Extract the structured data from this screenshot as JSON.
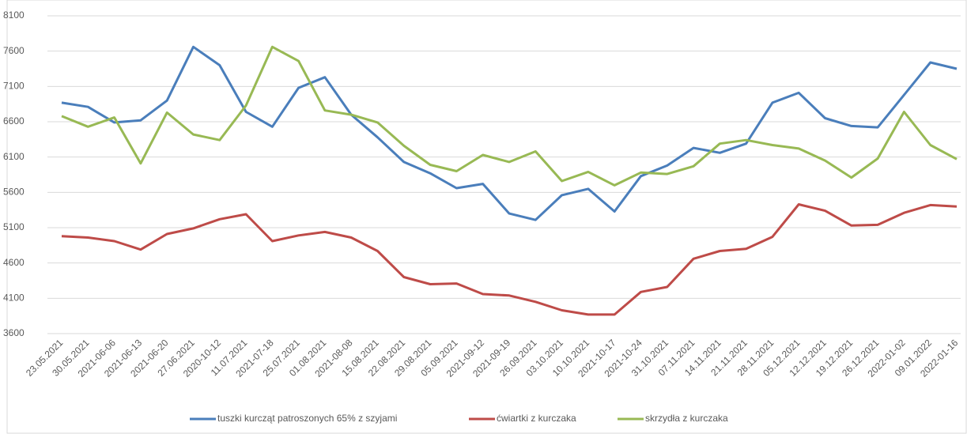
{
  "chart_data": {
    "type": "line",
    "categories": [
      "23.05.2021",
      "30.05.2021",
      "2021-06-06",
      "2021-06-13",
      "2021-06-20",
      "27.06.2021",
      "2020-10-12",
      "11.07.2021",
      "2021-07-18",
      "25.07.2021",
      "01.08.2021",
      "2021-08-08",
      "15.08.2021",
      "22.08.2021",
      "29.08.2021",
      "05.09.2021",
      "2021-09-12",
      "2021-09-19",
      "26.09.2021",
      "03.10.2021",
      "10.10.2021",
      "2021-10-17",
      "2021-10-24",
      "31.10.2021",
      "07.11.2021",
      "14.11.2021",
      "21.11.2021",
      "28.11.2021",
      "05.12.2021",
      "12.12.2021",
      "19.12.2021",
      "26.12.2021",
      "2022-01-02",
      "09.01.2022",
      "2022-01-16"
    ],
    "series": [
      {
        "name": "tuszki kurcząt patroszonych 65% z szyjami",
        "color": "#4a7ebb",
        "values": [
          6870,
          6810,
          6590,
          6620,
          6900,
          7660,
          7400,
          6740,
          6530,
          7080,
          7230,
          6700,
          6380,
          6030,
          5870,
          5660,
          5720,
          5300,
          5210,
          5560,
          5650,
          5330,
          5830,
          5980,
          6230,
          6160,
          6290,
          6870,
          7010,
          6650,
          6540,
          6520,
          6980,
          7440,
          7350
        ]
      },
      {
        "name": "ćwiartki z kurczaka",
        "color": "#be4b48",
        "values": [
          4980,
          4960,
          4910,
          4790,
          5010,
          5090,
          5220,
          5290,
          4910,
          4990,
          5040,
          4960,
          4770,
          4400,
          4300,
          4310,
          4160,
          4140,
          4050,
          3930,
          3870,
          3870,
          4190,
          4260,
          4660,
          4770,
          4800,
          4970,
          5430,
          5340,
          5130,
          5140,
          5310,
          5420,
          5400
        ]
      },
      {
        "name": "skrzydła z kurczaka",
        "color": "#98b954",
        "values": [
          6680,
          6530,
          6660,
          6010,
          6730,
          6420,
          6340,
          6830,
          7660,
          7460,
          6760,
          6700,
          6590,
          6260,
          5990,
          5900,
          6130,
          6030,
          6180,
          5760,
          5890,
          5700,
          5880,
          5860,
          5970,
          6290,
          6340,
          6270,
          6220,
          6050,
          5810,
          6080,
          6740,
          6270,
          6070
        ]
      }
    ],
    "ylim": [
      3600,
      8100
    ],
    "yticks": [
      3600,
      4100,
      4600,
      5100,
      5600,
      6100,
      6600,
      7100,
      7600,
      8100
    ],
    "grid": true
  }
}
